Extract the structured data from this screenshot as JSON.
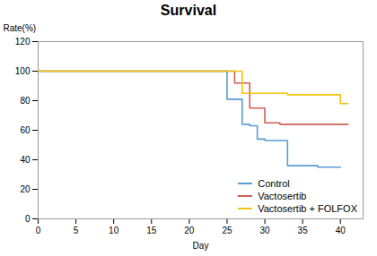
{
  "chart_data": {
    "type": "line",
    "title": "Survival",
    "xlabel": "Day",
    "ylabel": "Rate(%)",
    "xlim": [
      0,
      43
    ],
    "ylim": [
      0,
      120
    ],
    "xticks": [
      0,
      5,
      10,
      15,
      20,
      25,
      30,
      35,
      40
    ],
    "yticks": [
      0,
      20,
      40,
      60,
      80,
      100,
      120
    ],
    "grid": false,
    "legend": "lower right",
    "series": [
      {
        "name": "Control",
        "color": "#5B9BD5",
        "x": [
          0,
          25,
          25,
          27,
          27,
          28,
          28,
          29,
          29,
          30,
          30,
          33,
          33,
          37,
          37,
          40,
          40
        ],
        "values": [
          100,
          100,
          81,
          81,
          64,
          64,
          63,
          63,
          54,
          54,
          53,
          53,
          36,
          36,
          35,
          35,
          35
        ]
      },
      {
        "name": "Vactosertib",
        "color": "#CD6155",
        "x": [
          0,
          26,
          26,
          28,
          28,
          30,
          30,
          32,
          32,
          41
        ],
        "values": [
          100,
          100,
          92,
          92,
          75,
          75,
          65,
          65,
          64,
          64
        ]
      },
      {
        "name": "Vactosertib + FOLFOX",
        "color": "#F1C40F",
        "x": [
          0,
          27,
          27,
          33,
          33,
          40,
          40,
          41
        ],
        "values": [
          100,
          100,
          85,
          85,
          84,
          84,
          78,
          78
        ]
      }
    ]
  }
}
